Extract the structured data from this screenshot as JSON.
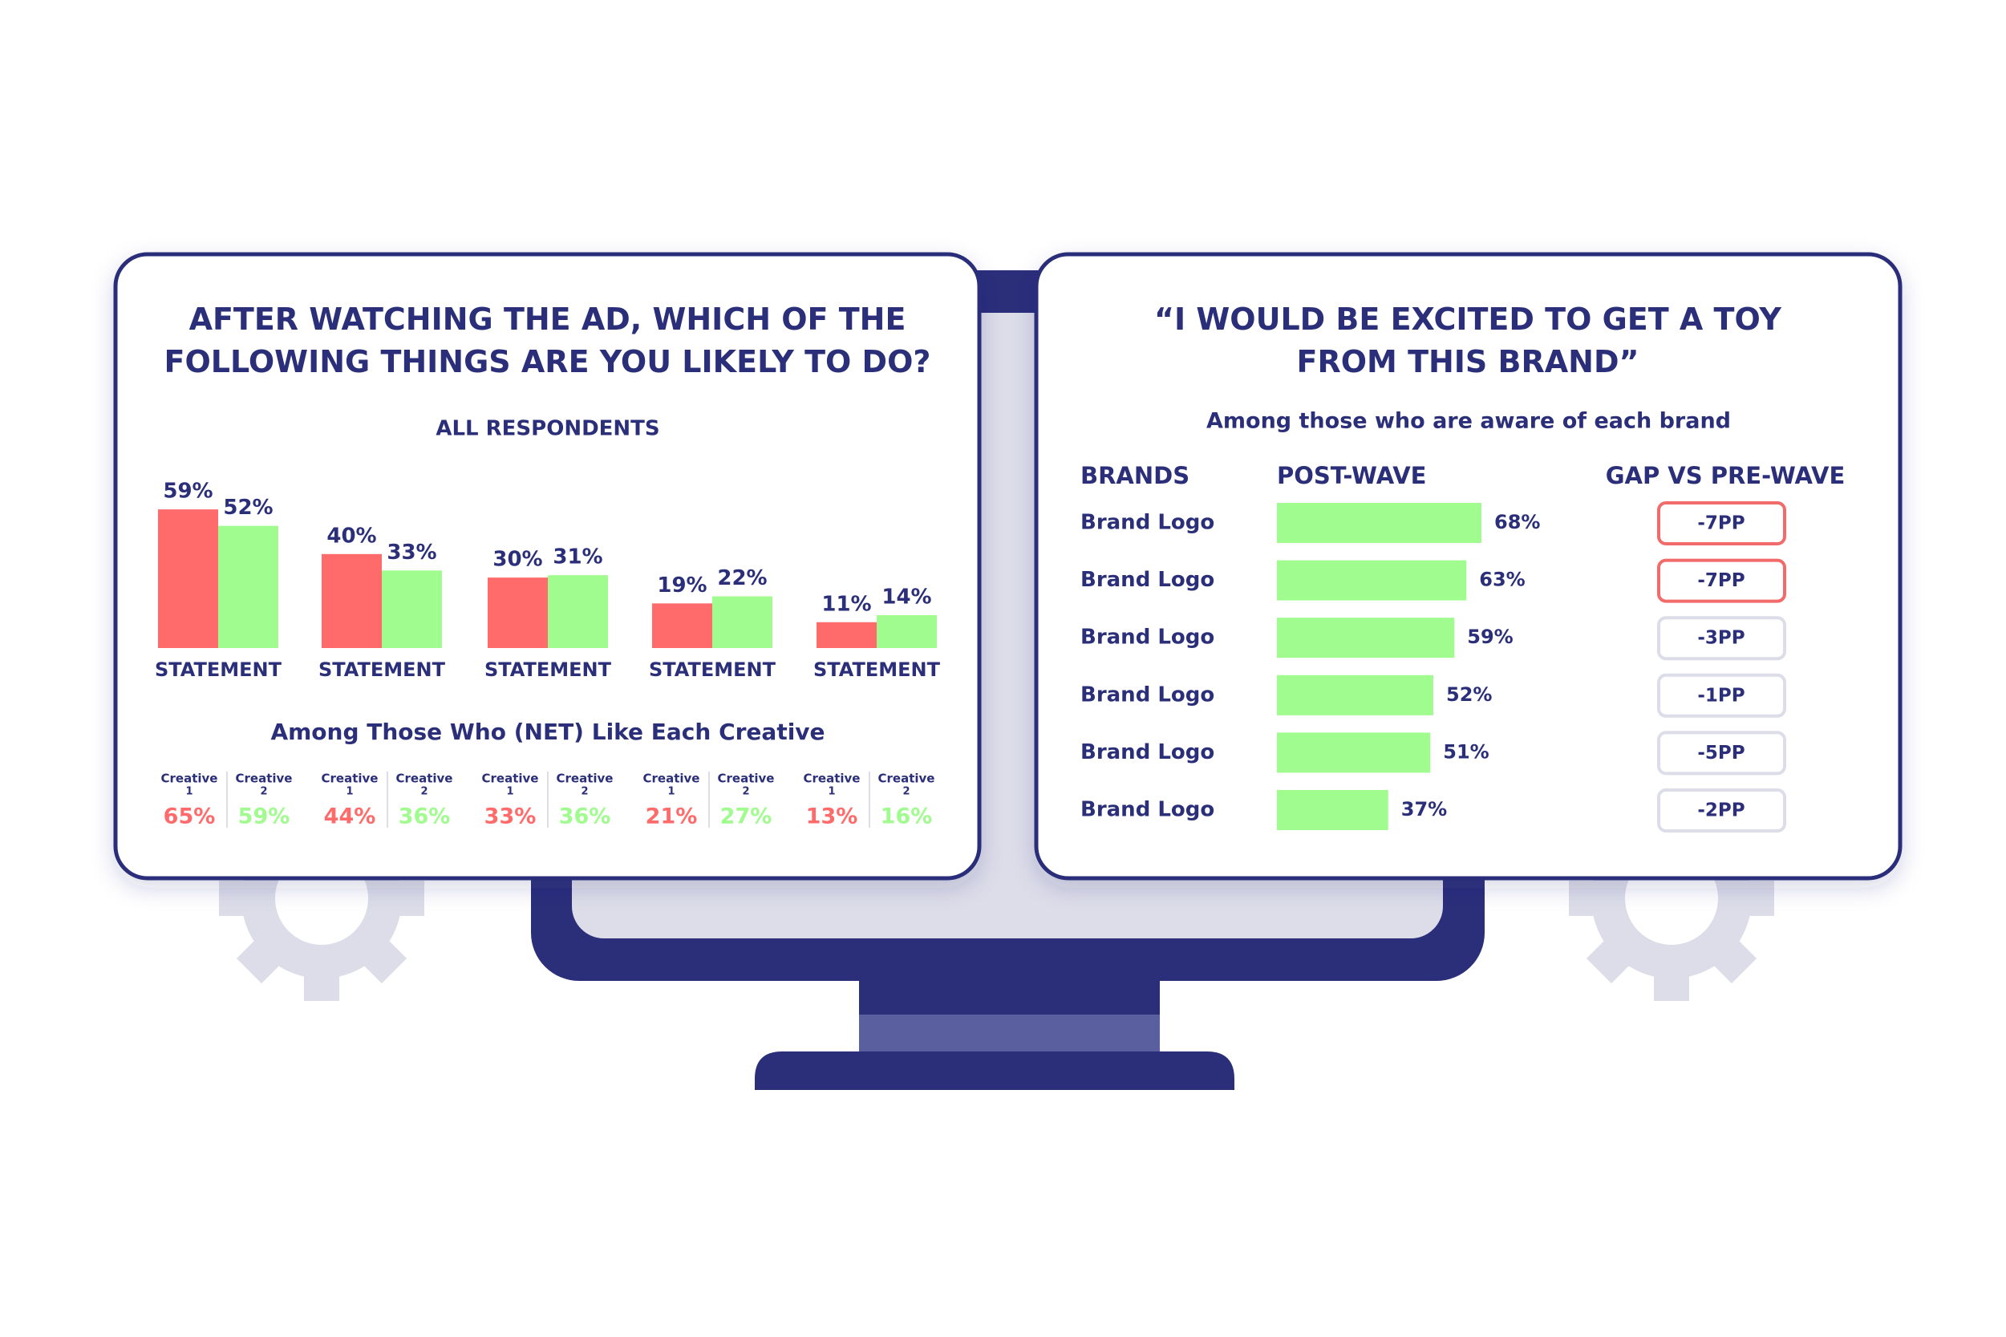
{
  "chart_data": [
    {
      "type": "bar",
      "orientation": "vertical",
      "title": "AFTER WATCHING THE AD, WHICH OF THE FOLLOWING THINGS ARE YOU LIKELY TO DO?",
      "subtitle": "ALL RESPONDENTS",
      "categories": [
        "STATEMENT",
        "STATEMENT",
        "STATEMENT",
        "STATEMENT",
        "STATEMENT"
      ],
      "series": [
        {
          "color": "#ff6b6b",
          "values": [
            59,
            40,
            30,
            19,
            11
          ],
          "value_labels": [
            "59%",
            "40%",
            "30%",
            "19%",
            "11%"
          ]
        },
        {
          "color": "#a0fc8e",
          "values": [
            52,
            33,
            31,
            22,
            14
          ],
          "value_labels": [
            "52%",
            "33%",
            "31%",
            "22%",
            "14%"
          ]
        }
      ],
      "net_like": {
        "title": "Among Those Who (NET) Like Each Creative",
        "columns": [
          {
            "label": "Creative",
            "number": "1",
            "value": "65%"
          },
          {
            "label": "Creative",
            "number": "2",
            "value": "59%"
          },
          {
            "label": "Creative",
            "number": "1",
            "value": "44%"
          },
          {
            "label": "Creative",
            "number": "2",
            "value": "36%"
          },
          {
            "label": "Creative",
            "number": "1",
            "value": "33%"
          },
          {
            "label": "Creative",
            "number": "2",
            "value": "36%"
          },
          {
            "label": "Creative",
            "number": "1",
            "value": "21%"
          },
          {
            "label": "Creative",
            "number": "2",
            "value": "27%"
          },
          {
            "label": "Creative",
            "number": "1",
            "value": "13%"
          },
          {
            "label": "Creative",
            "number": "2",
            "value": "16%"
          }
        ]
      }
    },
    {
      "type": "bar",
      "orientation": "horizontal",
      "title": "“I WOULD BE EXCITED TO GET A TOY FROM THIS BRAND”",
      "subtitle": "Among those who are aware of each brand",
      "category_header": "BRANDS",
      "categories": [
        "Brand Logo",
        "Brand Logo",
        "Brand Logo",
        "Brand Logo",
        "Brand Logo",
        "Brand Logo"
      ],
      "series": [
        {
          "name": "POST-WAVE",
          "color": "#a0fc8e",
          "values": [
            68,
            63,
            59,
            52,
            51,
            37
          ],
          "value_labels": [
            "68%",
            "63%",
            "59%",
            "52%",
            "51%",
            "37%"
          ]
        }
      ],
      "gap": {
        "title": "GAP VS PRE-WAVE",
        "values": [
          -7,
          -7,
          -3,
          -1,
          -5,
          -2
        ],
        "value_labels": [
          "-7PP",
          "-7PP",
          "-3PP",
          "-1PP",
          "-5PP",
          "-2PP"
        ],
        "highlight": [
          true,
          true,
          false,
          false,
          false,
          false
        ],
        "highlight_color": "#f26b6b"
      }
    }
  ]
}
